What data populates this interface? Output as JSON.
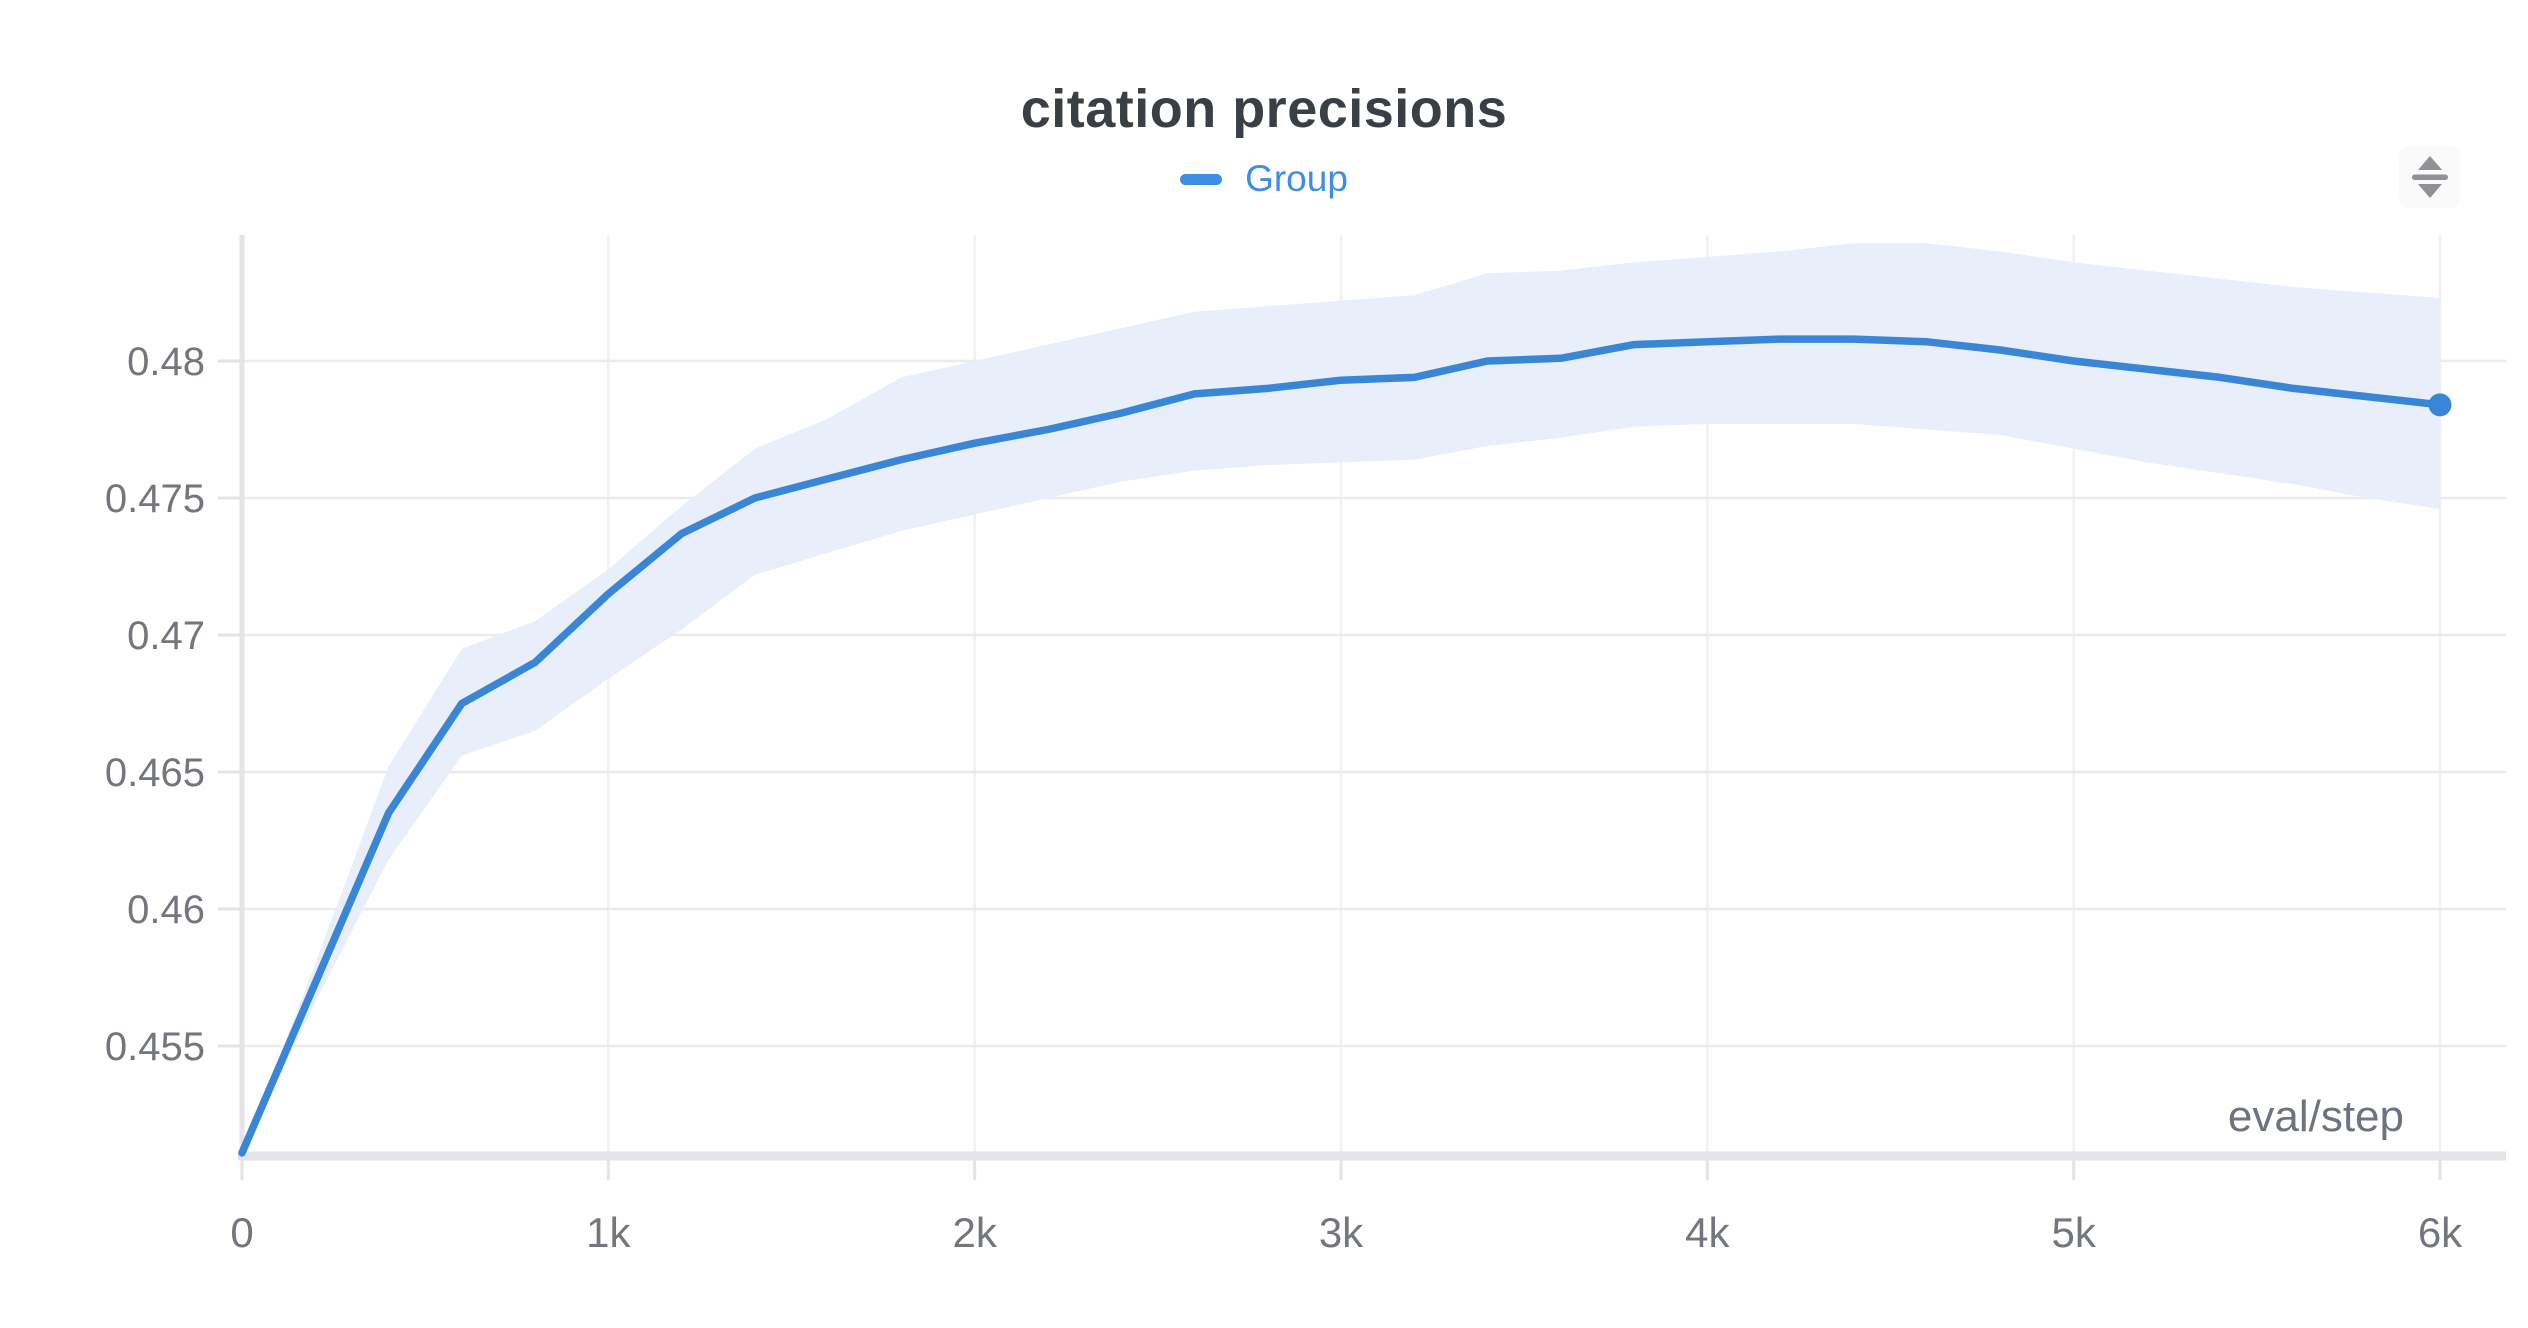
{
  "chart_data": {
    "type": "line",
    "title": "citation precisions",
    "xlabel": "eval/step",
    "legend_position": "top-center",
    "grid": true,
    "x_range": [
      0,
      6000
    ],
    "y_grid_range": [
      0.455,
      0.48
    ],
    "y_ticks": [
      {
        "label": "0.48",
        "value": 0.48
      },
      {
        "label": "0.475",
        "value": 0.475
      },
      {
        "label": "0.47",
        "value": 0.47
      },
      {
        "label": "0.465",
        "value": 0.465
      },
      {
        "label": "0.46",
        "value": 0.46
      },
      {
        "label": "0.455",
        "value": 0.455
      }
    ],
    "x_ticks": [
      {
        "label": "0",
        "step": 0
      },
      {
        "label": "1k",
        "step": 1000
      },
      {
        "label": "2k",
        "step": 2000
      },
      {
        "label": "3k",
        "step": 3000
      },
      {
        "label": "4k",
        "step": 4000
      },
      {
        "label": "5k",
        "step": 5000
      },
      {
        "label": "6k",
        "step": 6000
      }
    ],
    "x": [
      0,
      200,
      400,
      600,
      800,
      1000,
      1200,
      1400,
      1600,
      1800,
      2000,
      2200,
      2400,
      2600,
      2800,
      3000,
      3200,
      3400,
      3600,
      3800,
      4000,
      4200,
      4400,
      4600,
      4800,
      5000,
      5200,
      5400,
      5600,
      5800,
      6000
    ],
    "series": [
      {
        "name": "Group",
        "color": "#3a86d6",
        "y": [
          0.4511,
          0.4573,
          0.4635,
          0.4675,
          0.469,
          0.4715,
          0.4737,
          0.475,
          0.4757,
          0.4764,
          0.477,
          0.4775,
          0.4781,
          0.4788,
          0.479,
          0.4793,
          0.4794,
          0.48,
          0.4801,
          0.4806,
          0.4807,
          0.4808,
          0.4808,
          0.4807,
          0.4804,
          0.48,
          0.4797,
          0.4794,
          0.479,
          0.4787,
          0.4784
        ],
        "band_upper": [
          0.4511,
          0.458,
          0.4652,
          0.4695,
          0.4705,
          0.4724,
          0.4747,
          0.4768,
          0.4779,
          0.4794,
          0.48,
          0.4806,
          0.4812,
          0.4818,
          0.482,
          0.4822,
          0.4824,
          0.4832,
          0.4833,
          0.4836,
          0.4838,
          0.484,
          0.4843,
          0.4843,
          0.484,
          0.4836,
          0.4833,
          0.483,
          0.4827,
          0.4825,
          0.4823
        ],
        "band_lower": [
          0.4511,
          0.4566,
          0.4618,
          0.4656,
          0.4665,
          0.4684,
          0.4702,
          0.4722,
          0.473,
          0.4738,
          0.4744,
          0.475,
          0.4756,
          0.476,
          0.4762,
          0.4763,
          0.4764,
          0.4769,
          0.4772,
          0.4776,
          0.4777,
          0.4777,
          0.4777,
          0.4775,
          0.4773,
          0.4768,
          0.4763,
          0.4759,
          0.4755,
          0.475,
          0.4746
        ],
        "end_marker": true
      }
    ],
    "colors": {
      "band_fill": "#e8effa",
      "gridline": "#ebebee",
      "vertical_gridline": "#f1f1f4",
      "axis_line": "#e3e3e8",
      "tick_label": "#73767f",
      "title_text": "#3a3f46",
      "legend_text": "#3f8ee3",
      "xlabel_text": "#6f7380",
      "icon_gray": "#909095"
    }
  },
  "toolbar": {
    "icon": "swap-vertical"
  }
}
